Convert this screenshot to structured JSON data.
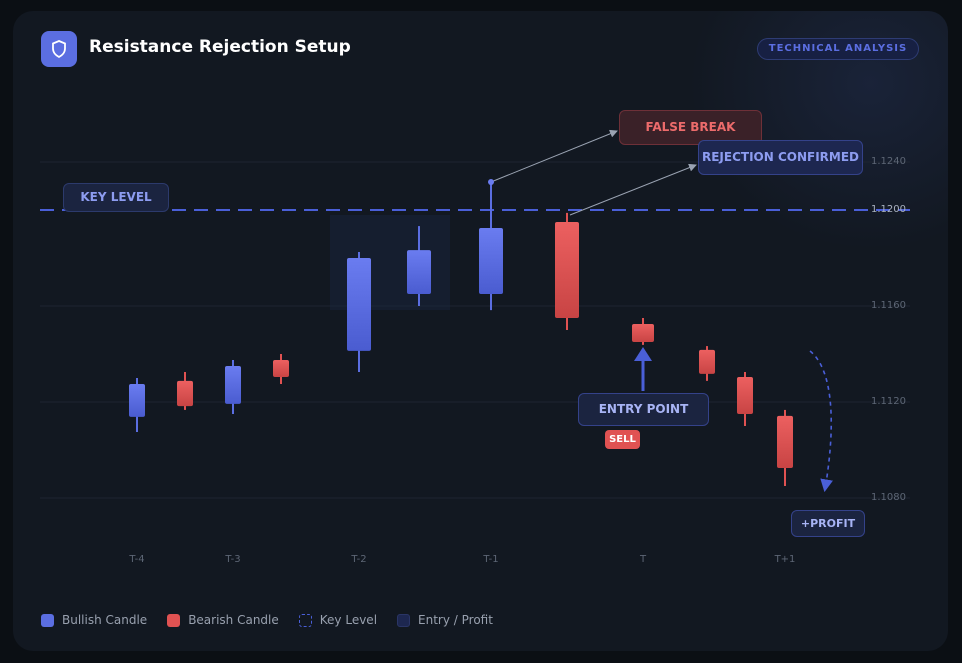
{
  "header": {
    "title": "Resistance Rejection Setup",
    "tag": "TECHNICAL ANALYSIS",
    "icon": "shield-icon"
  },
  "colors": {
    "bullish": "#5b6ee1",
    "bearish": "#e05252",
    "key_level": "#4a5fd8",
    "entry": "#1d2750"
  },
  "axis": {
    "price_labels": [
      "1.1240",
      "1.1200",
      "1.1160",
      "1.1120",
      "1.1080"
    ],
    "time_labels": [
      "T-4",
      "T-3",
      "T-2",
      "T-1",
      "T",
      "T+1"
    ]
  },
  "key_level": {
    "label": "KEY LEVEL",
    "price": 1.12
  },
  "annotations": {
    "false_break": "FALSE BREAK",
    "rejection": "REJECTION CONFIRMED",
    "entry": "ENTRY POINT",
    "sell": "SELL",
    "profit": "+PROFIT"
  },
  "chart_data": {
    "type": "candlestick",
    "candles": [
      {
        "o": 1.11138,
        "h": 1.113,
        "l": 1.11075,
        "c": 1.11275
      },
      {
        "o": 1.11288,
        "h": 1.11325,
        "l": 1.11167,
        "c": 1.11183
      },
      {
        "o": 1.11192,
        "h": 1.11375,
        "l": 1.1115,
        "c": 1.1135
      },
      {
        "o": 1.11375,
        "h": 1.114,
        "l": 1.11275,
        "c": 1.11304
      },
      {
        "o": 1.11413,
        "h": 1.11825,
        "l": 1.11325,
        "c": 1.118
      },
      {
        "o": 1.1165,
        "h": 1.11933,
        "l": 1.116,
        "c": 1.11833
      },
      {
        "o": 1.1165,
        "h": 1.12117,
        "l": 1.11583,
        "c": 1.11925
      },
      {
        "o": 1.1195,
        "h": 1.11988,
        "l": 1.115,
        "c": 1.1155
      },
      {
        "o": 1.11525,
        "h": 1.1155,
        "l": 1.11438,
        "c": 1.1145
      },
      {
        "o": 1.11417,
        "h": 1.11433,
        "l": 1.11288,
        "c": 1.11317
      },
      {
        "o": 1.11304,
        "h": 1.11325,
        "l": 1.111,
        "c": 1.1115
      },
      {
        "o": 1.11142,
        "h": 1.11167,
        "l": 1.1085,
        "c": 1.10925
      }
    ]
  },
  "legend": [
    {
      "label": "Bullish Candle"
    },
    {
      "label": "Bearish Candle"
    },
    {
      "label": "Key Level"
    },
    {
      "label": "Entry / Profit"
    }
  ]
}
